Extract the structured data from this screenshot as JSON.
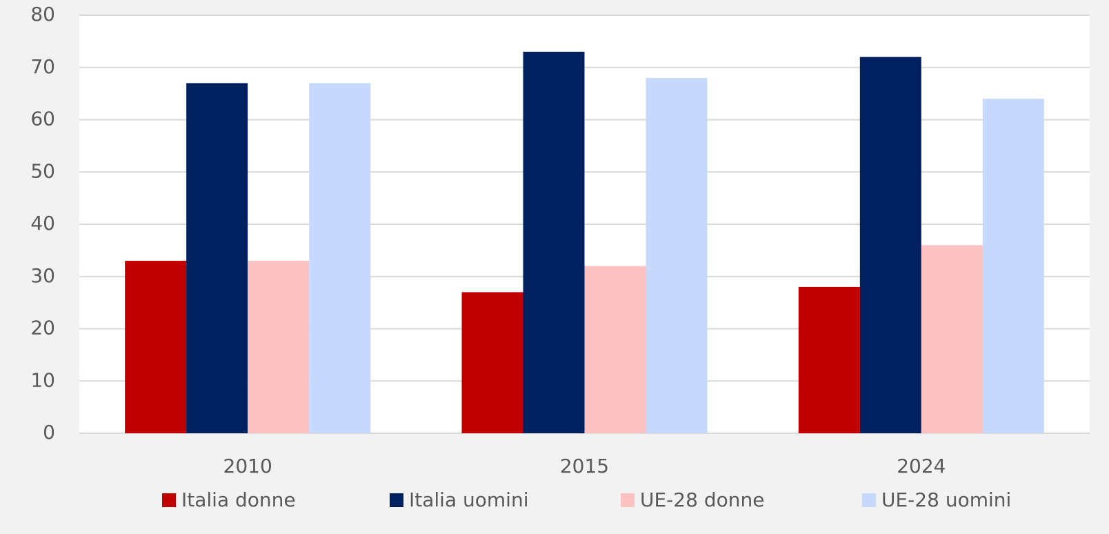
{
  "chart_data": {
    "type": "bar",
    "categories": [
      "2010",
      "2015",
      "2024"
    ],
    "series": [
      {
        "name": "Italia donne",
        "color": "#c00000",
        "values": [
          33,
          27,
          28
        ]
      },
      {
        "name": "Italia uomini",
        "color": "#002060",
        "values": [
          67,
          73,
          72
        ]
      },
      {
        "name": "UE-28 donne",
        "color": "#fcc2c2",
        "values": [
          33,
          32,
          36
        ]
      },
      {
        "name": "UE-28 uomini",
        "color": "#c6d9fc",
        "values": [
          67,
          68,
          64
        ]
      }
    ],
    "ylim": [
      0,
      80
    ],
    "yticks": [
      0,
      10,
      20,
      30,
      40,
      50,
      60,
      70,
      80
    ],
    "grid": true,
    "legend": "bottom"
  }
}
